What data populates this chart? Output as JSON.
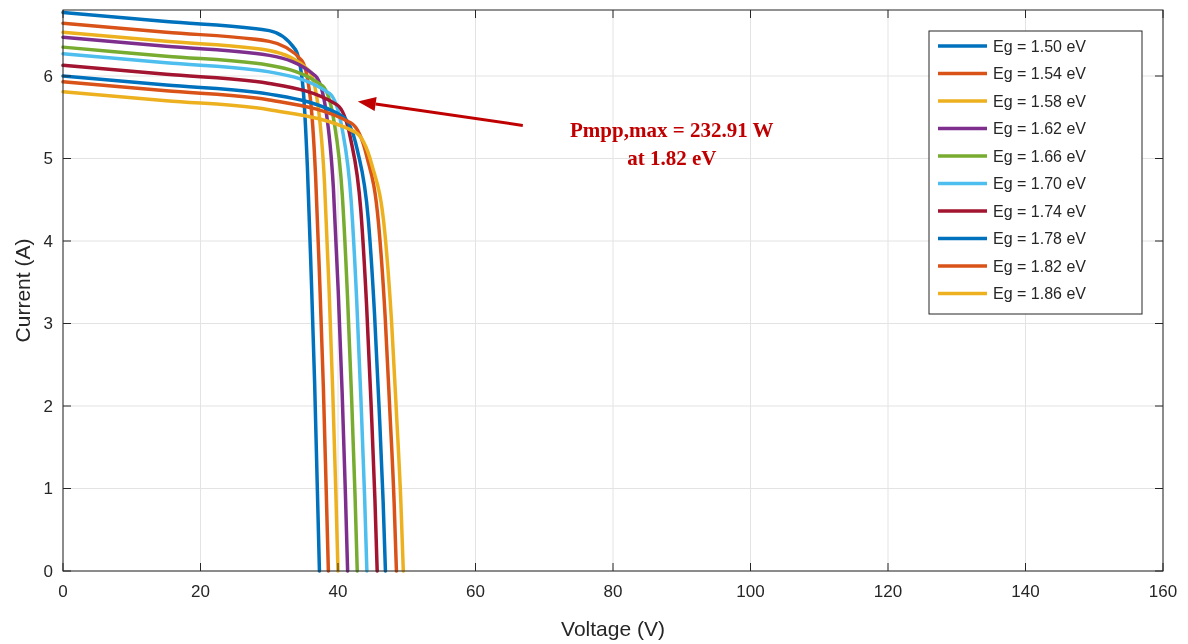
{
  "chart_data": {
    "type": "line",
    "xlabel": "Voltage (V)",
    "ylabel": "Current (A)",
    "xlim": [
      0,
      160
    ],
    "ylim": [
      0,
      6.8
    ],
    "xticks": [
      0,
      20,
      40,
      60,
      80,
      100,
      120,
      140,
      160
    ],
    "yticks": [
      0,
      1,
      2,
      3,
      4,
      5,
      6
    ],
    "grid": true,
    "legend": "top right",
    "marker": "none",
    "line_style": "solid",
    "annotations": [
      "Pmpp,max = 232.91 W\nat 1.82 eV"
    ],
    "series": [
      {
        "name": "Eg = 1.50 eV",
        "color": "#0072bd",
        "x": [
          0,
          15,
          30,
          33.8,
          34.9,
          35.55,
          36.1,
          36.6,
          37.0,
          37.3
        ],
        "values": [
          6.77,
          6.66,
          6.55,
          6.32,
          5.87,
          4.89,
          3.59,
          2.28,
          0.98,
          0
        ]
      },
      {
        "name": "Eg = 1.54 eV",
        "color": "#d95319",
        "x": [
          0,
          15,
          30,
          34.71,
          35.96,
          36.74,
          37.34,
          37.87,
          38.29,
          38.6
        ],
        "values": [
          6.64,
          6.53,
          6.42,
          6.19,
          5.74,
          4.79,
          3.51,
          2.23,
          0.96,
          0
        ]
      },
      {
        "name": "Eg = 1.58 eV",
        "color": "#edb120",
        "x": [
          0,
          15,
          30,
          35.72,
          37.11,
          38.04,
          38.69,
          39.23,
          39.69,
          40.0
        ],
        "values": [
          6.53,
          6.42,
          6.31,
          6.07,
          5.63,
          4.7,
          3.44,
          2.19,
          0.94,
          0
        ]
      },
      {
        "name": "Eg = 1.62 eV",
        "color": "#7e2f8e",
        "x": [
          0,
          15,
          30,
          36.73,
          38.27,
          39.33,
          40.03,
          40.6,
          41.08,
          41.4
        ],
        "values": [
          6.47,
          6.36,
          6.25,
          6.0,
          5.57,
          4.64,
          3.4,
          2.17,
          0.93,
          0
        ]
      },
      {
        "name": "Eg = 1.66 eV",
        "color": "#77ac30",
        "x": [
          0,
          15,
          30,
          37.74,
          39.42,
          40.63,
          41.38,
          41.97,
          42.48,
          42.8
        ],
        "values": [
          6.35,
          6.24,
          6.13,
          5.88,
          5.45,
          4.55,
          3.33,
          2.12,
          0.91,
          0
        ]
      },
      {
        "name": "Eg = 1.70 eV",
        "color": "#4dbeee",
        "x": [
          0,
          15,
          30,
          38.76,
          40.58,
          41.92,
          42.72,
          43.33,
          43.87,
          44.2
        ],
        "values": [
          6.27,
          6.16,
          6.05,
          5.79,
          5.37,
          4.48,
          3.28,
          2.09,
          0.9,
          0
        ]
      },
      {
        "name": "Eg = 1.74 eV",
        "color": "#a2142f",
        "x": [
          0,
          15,
          30,
          39.87,
          41.83,
          43.32,
          44.17,
          44.8,
          45.37,
          45.7
        ],
        "values": [
          6.13,
          6.02,
          5.91,
          5.65,
          5.24,
          4.37,
          3.2,
          2.04,
          0.87,
          0
        ]
      },
      {
        "name": "Eg = 1.78 eV",
        "color": "#0072bd",
        "x": [
          0,
          15,
          30,
          40.68,
          42.79,
          44.41,
          45.31,
          45.97,
          46.56,
          46.9
        ],
        "values": [
          6.0,
          5.89,
          5.78,
          5.51,
          5.11,
          4.26,
          3.12,
          1.99,
          0.85,
          0
        ]
      },
      {
        "name": "Eg = 1.82 eV",
        "color": "#d95319",
        "x": [
          0,
          15,
          30,
          41.89,
          44.14,
          45.91,
          46.86,
          47.53,
          48.16,
          48.5
        ],
        "values": [
          5.93,
          5.82,
          5.71,
          5.43,
          5.04,
          4.2,
          3.08,
          1.96,
          0.84,
          0
        ]
      },
      {
        "name": "Eg = 1.86 eV",
        "color": "#edb120",
        "x": [
          0,
          15,
          30,
          42.5,
          44.9,
          46.8,
          47.8,
          48.5,
          49.15,
          49.5
        ],
        "values": [
          5.81,
          5.7,
          5.59,
          5.32,
          4.93,
          4.11,
          3.01,
          1.92,
          0.82,
          0
        ]
      }
    ]
  }
}
